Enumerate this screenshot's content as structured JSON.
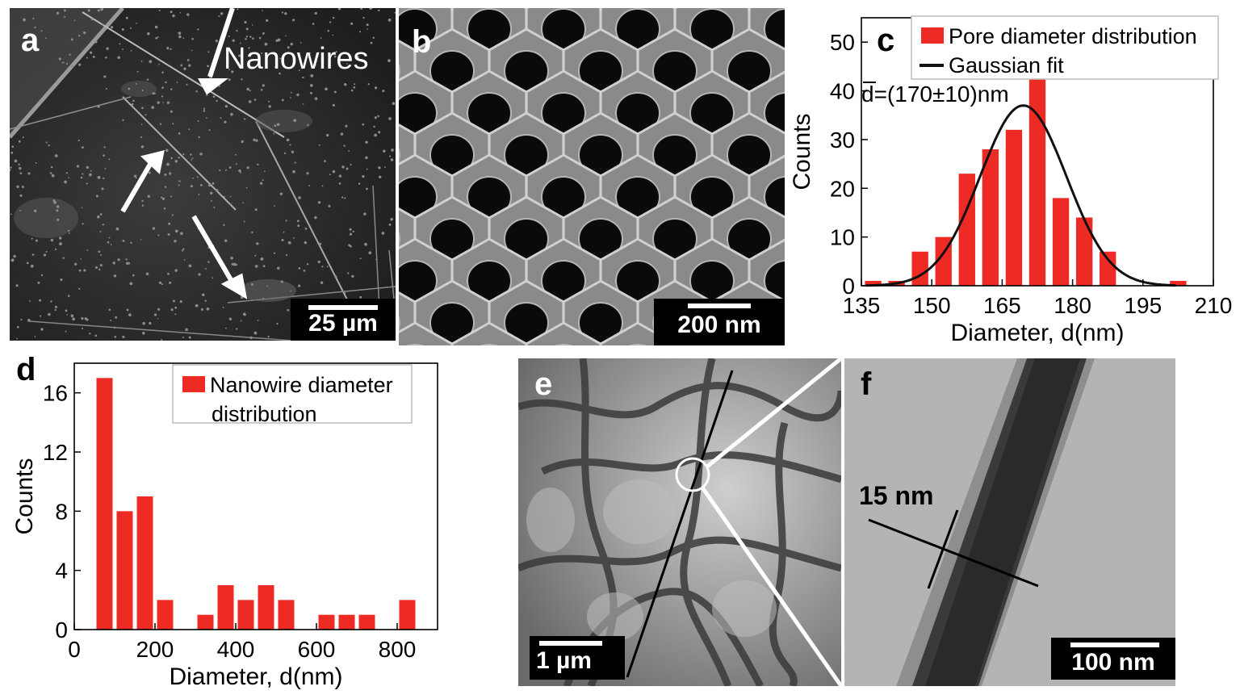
{
  "panel_a": {
    "label": "a",
    "annotation": "Nanowires",
    "scale_bar": "25 µm"
  },
  "panel_b": {
    "label": "b",
    "scale_bar": "200 nm"
  },
  "panel_e": {
    "label": "e",
    "scale_bar": "1 µm"
  },
  "panel_f": {
    "label": "f",
    "annotation": "15 nm",
    "scale_bar": "100 nm"
  },
  "colors": {
    "bar": "#ee2a24",
    "fit": "#111111",
    "axis": "#000000"
  },
  "chart_data": [
    {
      "panel": "c",
      "type": "bar",
      "xlabel": "Diameter, d(nm)",
      "ylabel": "Counts",
      "xlim": [
        135,
        210
      ],
      "ylim": [
        0,
        55
      ],
      "xticks": [
        135,
        150,
        165,
        180,
        195,
        210
      ],
      "yticks": [
        0,
        10,
        20,
        30,
        40,
        50
      ],
      "annotation": "d=(170±10)nm",
      "legend": {
        "position": "top-right",
        "entries": [
          "Pore diameter distribution",
          "Gaussian fit"
        ]
      },
      "series": [
        {
          "name": "Pore diameter distribution",
          "x": [
            137.5,
            142.5,
            147.5,
            152.5,
            157.5,
            162.5,
            167.5,
            172.5,
            177.5,
            182.5,
            187.5,
            202.5
          ],
          "values": [
            1,
            1,
            7,
            10,
            23,
            28,
            32,
            43,
            18,
            14,
            7,
            1
          ],
          "bar_width": 3.5
        },
        {
          "name": "Gaussian fit",
          "type": "line",
          "mean": 169.5,
          "sigma": 9.2,
          "amplitude": 37,
          "x_range": [
            136,
            202
          ]
        }
      ]
    },
    {
      "panel": "d",
      "type": "bar",
      "xlabel": "Diameter, d(nm)",
      "ylabel": "Counts",
      "xlim": [
        0,
        900
      ],
      "ylim": [
        0,
        18
      ],
      "xticks": [
        0,
        200,
        400,
        600,
        800
      ],
      "yticks": [
        0,
        4,
        8,
        12,
        16
      ],
      "legend": {
        "position": "top-right",
        "entries": [
          "Nanowire diameter distribution"
        ]
      },
      "series": [
        {
          "name": "Nanowire diameter distribution",
          "x": [
            75,
            125,
            175,
            225,
            325,
            375,
            425,
            475,
            525,
            625,
            675,
            725,
            825
          ],
          "values": [
            17,
            8,
            9,
            2,
            1,
            3,
            2,
            3,
            2,
            1,
            1,
            1,
            2
          ],
          "bar_width": 40
        }
      ]
    }
  ]
}
